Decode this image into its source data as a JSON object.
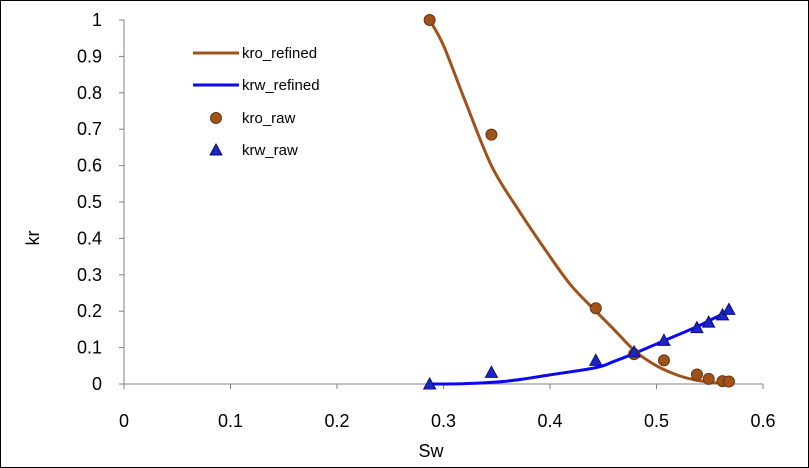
{
  "chart_data": {
    "type": "scatter",
    "title": "",
    "xlabel": "Sw",
    "ylabel": "kr",
    "xlim": [
      0,
      0.6
    ],
    "ylim": [
      0,
      1
    ],
    "x_ticks": [
      "0",
      "0.1",
      "0.2",
      "0.3",
      "0.4",
      "0.5",
      "0.6"
    ],
    "y_ticks": [
      "0",
      "0.1",
      "0.2",
      "0.3",
      "0.4",
      "0.5",
      "0.6",
      "0.7",
      "0.8",
      "0.9",
      "1"
    ],
    "grid": false,
    "legend_position": "top-left",
    "series": [
      {
        "name": "kro_refined",
        "kind": "line",
        "color": "#A0521B",
        "x": [
          0.287,
          0.3,
          0.32,
          0.345,
          0.37,
          0.4,
          0.42,
          0.443,
          0.46,
          0.48,
          0.5,
          0.52,
          0.535,
          0.55,
          0.562,
          0.57
        ],
        "y": [
          1.0,
          0.93,
          0.78,
          0.6,
          0.48,
          0.35,
          0.27,
          0.2,
          0.15,
          0.09,
          0.05,
          0.024,
          0.012,
          0.005,
          0.002,
          0.0
        ]
      },
      {
        "name": "krw_refined",
        "kind": "line",
        "color": "#0A0AF0",
        "x": [
          0.287,
          0.32,
          0.36,
          0.4,
          0.443,
          0.46,
          0.48,
          0.5,
          0.52,
          0.54,
          0.555,
          0.57
        ],
        "y": [
          0.0,
          0.001,
          0.008,
          0.025,
          0.045,
          0.062,
          0.085,
          0.11,
          0.135,
          0.16,
          0.182,
          0.202
        ]
      },
      {
        "name": "kro_raw",
        "kind": "marker",
        "marker": "circle",
        "color": "#A0521B",
        "x": [
          0.287,
          0.345,
          0.443,
          0.479,
          0.507,
          0.538,
          0.549,
          0.562,
          0.568
        ],
        "y": [
          1.0,
          0.685,
          0.208,
          0.082,
          0.065,
          0.026,
          0.014,
          0.008,
          0.007
        ]
      },
      {
        "name": "krw_raw",
        "kind": "marker",
        "marker": "triangle",
        "color": "#1E24C8",
        "x": [
          0.287,
          0.345,
          0.443,
          0.479,
          0.507,
          0.538,
          0.549,
          0.562,
          0.568
        ],
        "y": [
          0.0,
          0.032,
          0.065,
          0.088,
          0.12,
          0.155,
          0.17,
          0.19,
          0.205
        ]
      }
    ]
  }
}
